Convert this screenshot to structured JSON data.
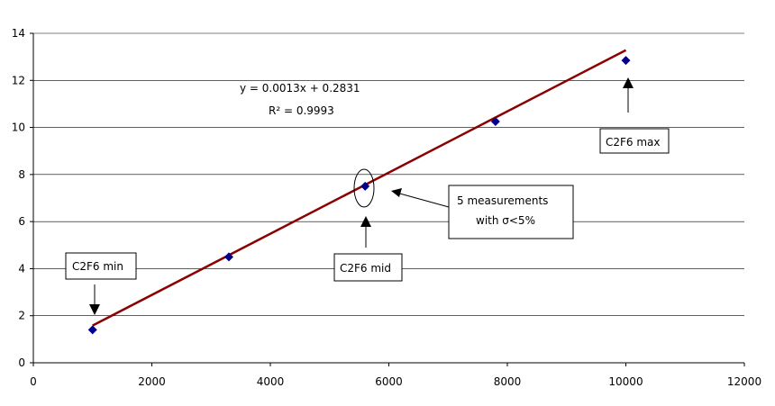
{
  "chart_data": {
    "type": "scatter",
    "x": [
      1000,
      3300,
      5600,
      7800,
      10000
    ],
    "y": [
      1.4,
      4.5,
      7.5,
      10.25,
      12.85
    ],
    "xlim": [
      0,
      12000
    ],
    "ylim": [
      0,
      14
    ],
    "xticks": [
      0,
      2000,
      4000,
      6000,
      8000,
      10000,
      12000
    ],
    "yticks": [
      0,
      2,
      4,
      6,
      8,
      10,
      12,
      14
    ],
    "grid": "horizontal",
    "trendline": {
      "slope": 0.0013,
      "intercept": 0.2831,
      "x_range": [
        1000,
        10000
      ],
      "equation_label": "y = 0.0013x  + 0.2831",
      "r2_label": "R² = 0.9993",
      "color": "#8B0000"
    },
    "marker_color": "#00008B",
    "annotations": {
      "min": "C2F6  min",
      "mid": "C2F6  mid",
      "max": "C2F6  max",
      "note_line1": "5 measurements",
      "note_line2": "with σ<5%"
    }
  }
}
